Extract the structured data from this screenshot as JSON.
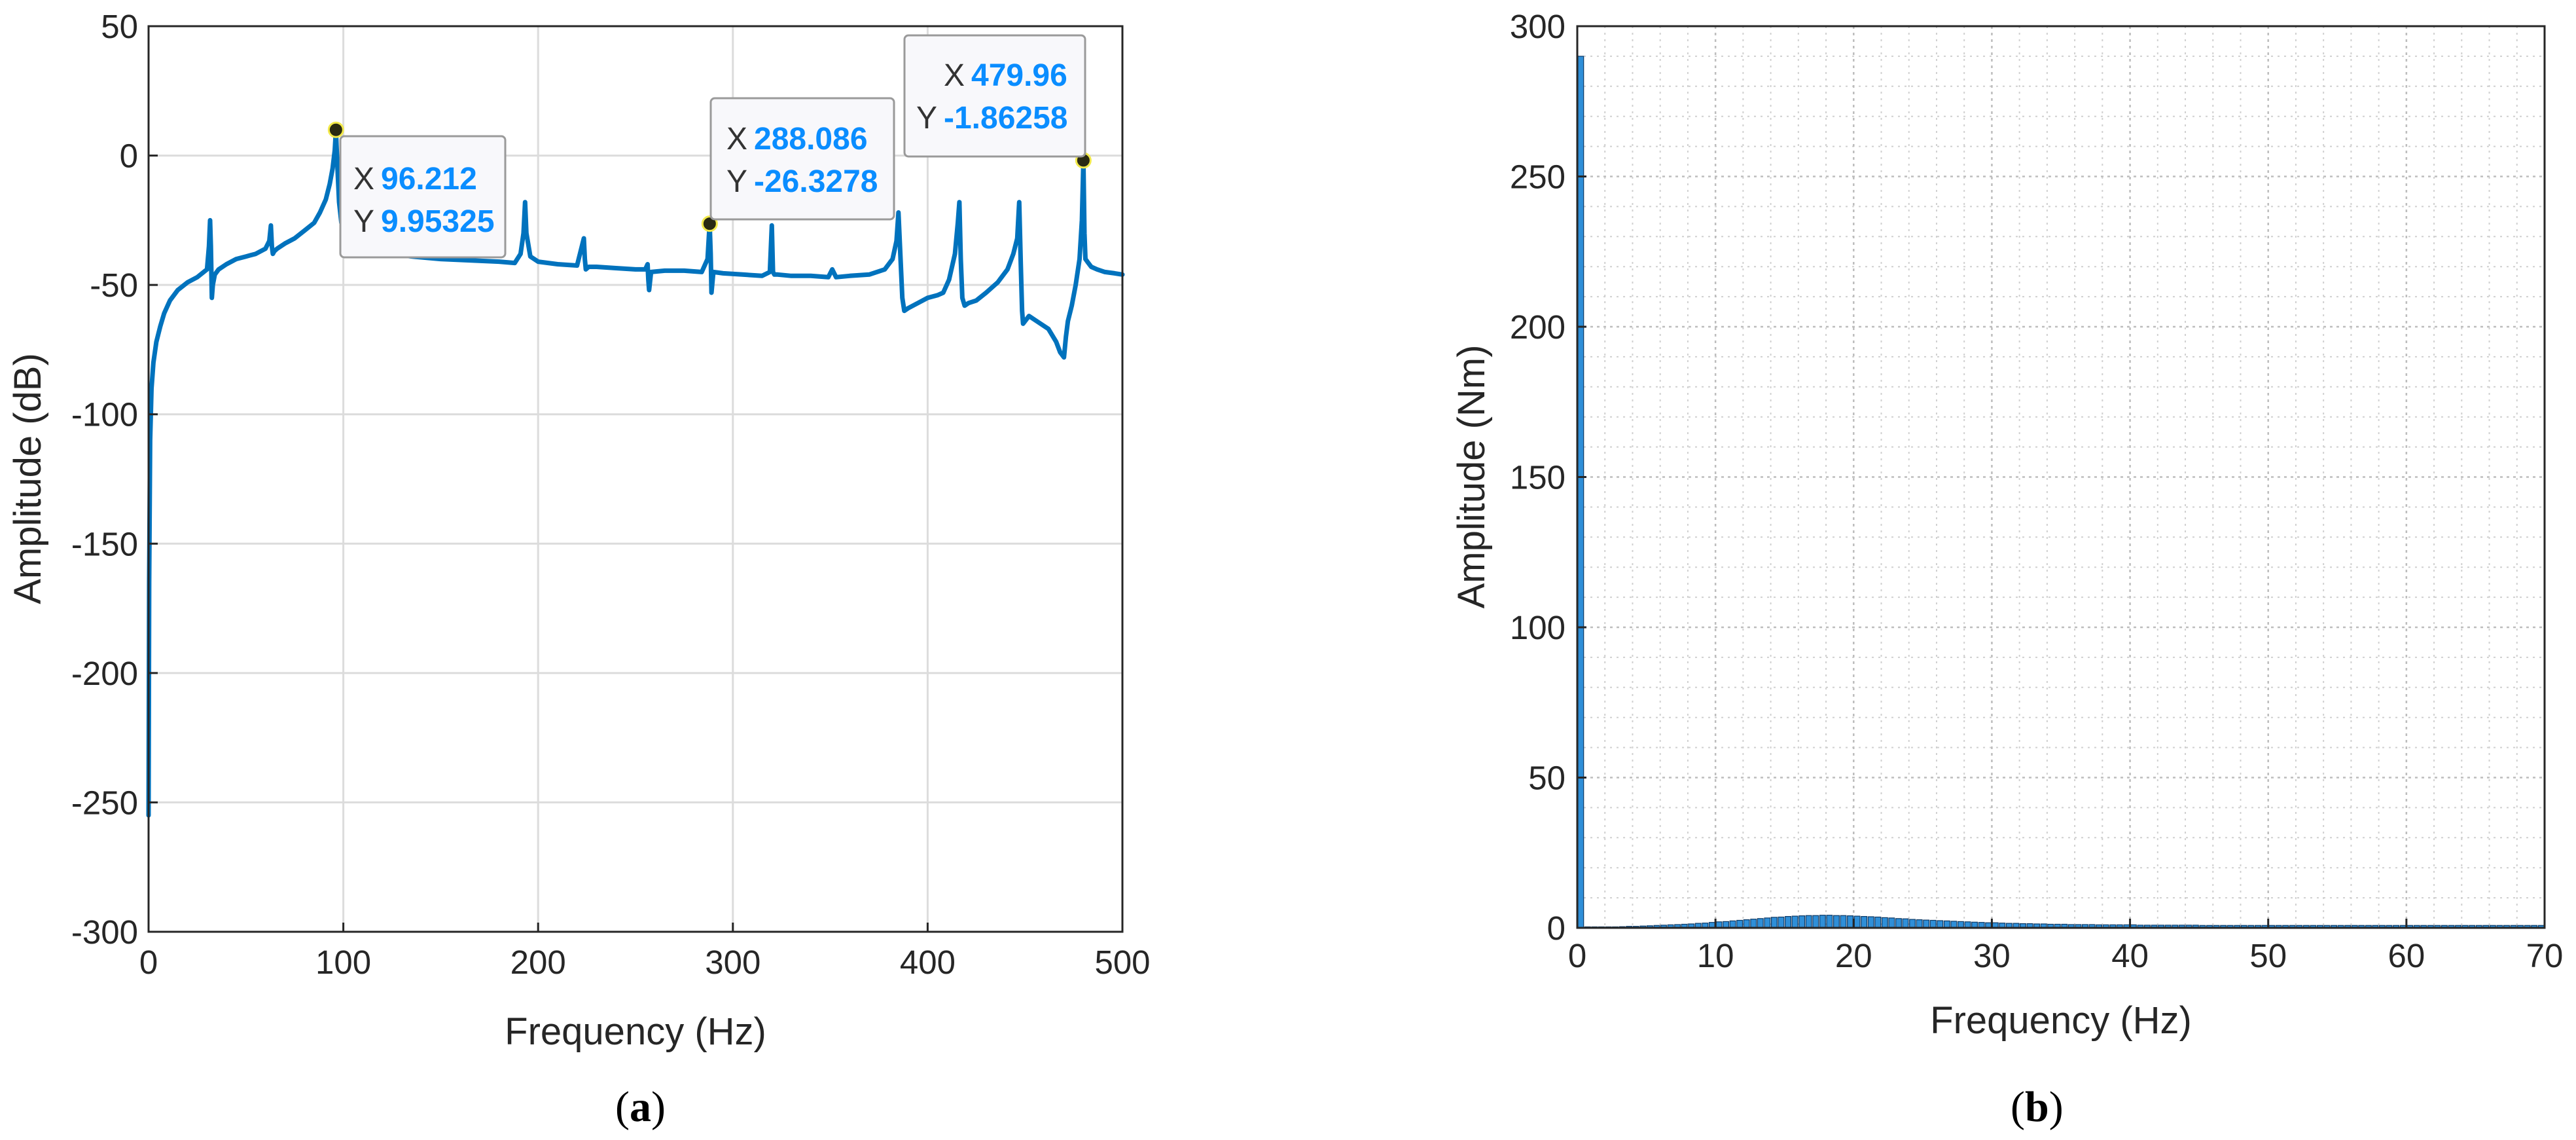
{
  "chart_data": [
    {
      "type": "line",
      "caption_letter": "a",
      "xlabel": "Frequency (Hz)",
      "ylabel": "Amplitude (dB)",
      "xlim": [
        0,
        500
      ],
      "ylim": [
        -300,
        50
      ],
      "xticks": [
        "0",
        "100",
        "200",
        "300",
        "400",
        "500"
      ],
      "yticks": [
        "50",
        "0",
        "-50",
        "-100",
        "-150",
        "-200",
        "-250",
        "-300"
      ],
      "grid": true,
      "line_color": "#0072BD",
      "series": [
        {
          "x": [
            0,
            0.3,
            0.8,
            1.5,
            2.5,
            4,
            6,
            8,
            11,
            15,
            20,
            25,
            30,
            31,
            31.6,
            32,
            32.5,
            33,
            34,
            36,
            40,
            45,
            50,
            55,
            60,
            62,
            62.8,
            63.3,
            63.8,
            64.5,
            66,
            70,
            75,
            80,
            85,
            88,
            91,
            93,
            94.5,
            95.6,
            96.212,
            96.5,
            97,
            97.8,
            99,
            101,
            104,
            108,
            115,
            125,
            135,
            150,
            165,
            180,
            188,
            191,
            192.5,
            193.3,
            194,
            196,
            200,
            210,
            220,
            223.5,
            224,
            224.5,
            226,
            230,
            240,
            250,
            255,
            256.2,
            256.6,
            257,
            258,
            265,
            275,
            284,
            287,
            288.086,
            288.6,
            289,
            290,
            295,
            305,
            315,
            319,
            320,
            320.6,
            321.3,
            323,
            330,
            340,
            349,
            351,
            353,
            360,
            370,
            378,
            382,
            384,
            385,
            385.8,
            386.4,
            387,
            388,
            390,
            395,
            400,
            405,
            408,
            411,
            414,
            415.5,
            416.3,
            417,
            417.8,
            419,
            421,
            425,
            430,
            436,
            441,
            444,
            446,
            447,
            447.8,
            448.5,
            449,
            450,
            452,
            456,
            462,
            466,
            468,
            470,
            471,
            472,
            474,
            476,
            478,
            479.2,
            479.96,
            480.5,
            481,
            482,
            484,
            487,
            491,
            496,
            500
          ],
          "y": [
            -255,
            -165,
            -110,
            -90,
            -80,
            -72,
            -66,
            -61,
            -56,
            -52,
            -49,
            -47,
            -44,
            -35,
            -25,
            -35,
            -55,
            -50,
            -46,
            -44,
            -42,
            -40,
            -39,
            -38,
            -36,
            -33,
            -27,
            -35,
            -38,
            -37,
            -36,
            -34,
            -32,
            -29,
            -26,
            -22,
            -17,
            -11,
            -5,
            2,
            9.95,
            4,
            -5,
            -18,
            -26,
            -30,
            -33,
            -35,
            -37,
            -38,
            -39,
            -40,
            -40.5,
            -41,
            -41.5,
            -38,
            -30,
            -18,
            -30,
            -39,
            -41,
            -42,
            -42.5,
            -32,
            -40,
            -44,
            -43,
            -43,
            -43.5,
            -44,
            -44,
            -42,
            -48,
            -52,
            -45,
            -44.5,
            -44.5,
            -45,
            -40,
            -26.3,
            -38,
            -53,
            -45,
            -45.5,
            -46,
            -46.5,
            -45,
            -27,
            -45,
            -46,
            -46,
            -46.5,
            -46.5,
            -47,
            -44,
            -47,
            -46.5,
            -46,
            -44,
            -40,
            -33,
            -22,
            -35,
            -45,
            -55,
            -60,
            -59,
            -57,
            -55,
            -54,
            -53,
            -48,
            -38,
            -26,
            -18,
            -40,
            -55,
            -58,
            -57,
            -56,
            -53,
            -49,
            -44,
            -38,
            -32,
            -18,
            -42,
            -60,
            -65,
            -64,
            -62,
            -64,
            -67,
            -72,
            -76,
            -78,
            -70,
            -64,
            -58,
            -50,
            -40,
            -25,
            -1.86,
            -30,
            -40,
            -41,
            -43,
            -44,
            -45,
            -45.5,
            -46
          ],
          "markers": [
            {
              "x": 96.212,
              "y": 9.95325
            },
            {
              "x": 288.086,
              "y": -26.3278
            },
            {
              "x": 479.96,
              "y": -1.86258
            }
          ]
        }
      ],
      "datatips": [
        {
          "x_label": "X",
          "x_value": "96.212",
          "y_label": "Y",
          "y_value": "9.95325"
        },
        {
          "x_label": "X",
          "x_value": "288.086",
          "y_label": "Y",
          "y_value": "-26.3278"
        },
        {
          "x_label": "X",
          "x_value": "479.96",
          "y_label": "Y",
          "y_value": "-1.86258"
        }
      ]
    },
    {
      "type": "bar",
      "caption_letter": "b",
      "xlabel": "Frequency (Hz)",
      "ylabel": "Amplitude (Nm)",
      "xlim": [
        0,
        70
      ],
      "ylim": [
        0,
        300
      ],
      "xticks": [
        "0",
        "10",
        "20",
        "30",
        "40",
        "50",
        "60",
        "70"
      ],
      "yticks": [
        "300",
        "250",
        "200",
        "150",
        "100",
        "50",
        "0"
      ],
      "grid": true,
      "minor_grid": true,
      "bar_color": "#2f8fd8",
      "series": [
        {
          "x": [
            0.25,
            0.75,
            1.25,
            1.75,
            2.25,
            2.75,
            3.25,
            3.75,
            4.25,
            4.75,
            5.25,
            5.75,
            6.25,
            6.75,
            7.25,
            7.75,
            8.25,
            8.75,
            9.25,
            9.75,
            10.25,
            10.75,
            11.25,
            11.75,
            12.25,
            12.75,
            13.25,
            13.75,
            14.25,
            14.75,
            15.25,
            15.75,
            16.25,
            16.75,
            17.25,
            17.75,
            18.25,
            18.75,
            19.25,
            19.75,
            20.25,
            20.75,
            21.25,
            21.75,
            22.25,
            22.75,
            23.25,
            23.75,
            24.25,
            24.75,
            25.25,
            25.75,
            26.25,
            26.75,
            27.25,
            27.75,
            28.25,
            28.75,
            29.25,
            29.75,
            30.25,
            30.75,
            31.25,
            31.75,
            32.25,
            32.75,
            33.25,
            33.75,
            34.25,
            34.75,
            35.25,
            35.75,
            36.25,
            36.75,
            37.25,
            37.75,
            38.25,
            38.75,
            39.25,
            39.75,
            40.25,
            40.75,
            41.25,
            41.75,
            42.25,
            42.75,
            43.25,
            43.75,
            44.25,
            44.75,
            45.25,
            45.75,
            46.25,
            46.75,
            47.25,
            47.75,
            48.25,
            48.75,
            49.25,
            49.75,
            50.25,
            50.75,
            51.25,
            51.75,
            52.25,
            52.75,
            53.25,
            53.75,
            54.25,
            54.75,
            55.25,
            55.75,
            56.25,
            56.75,
            57.25,
            57.75,
            58.25,
            58.75,
            59.25,
            59.75,
            60.25,
            60.75,
            61.25,
            61.75,
            62.25,
            62.75,
            63.25,
            63.75,
            64.25,
            64.75,
            65.25,
            65.75,
            66.25,
            66.75,
            67.25,
            67.75,
            68.25,
            68.75,
            69.25,
            69.75
          ],
          "values": [
            290,
            0.3,
            0.2,
            0.2,
            0.3,
            0.3,
            0.4,
            0.5,
            0.5,
            0.6,
            0.7,
            0.8,
            0.9,
            1,
            1.1,
            1.2,
            1.3,
            1.5,
            1.6,
            1.8,
            2,
            2.1,
            2.3,
            2.5,
            2.7,
            2.9,
            3.1,
            3.3,
            3.5,
            3.6,
            3.8,
            3.9,
            4,
            4.1,
            4.1,
            4.2,
            4.2,
            4.1,
            4.1,
            4,
            3.9,
            3.8,
            3.7,
            3.6,
            3.4,
            3.3,
            3.1,
            3,
            2.8,
            2.7,
            2.6,
            2.5,
            2.4,
            2.3,
            2.2,
            2.1,
            2,
            1.9,
            1.8,
            1.7,
            1.7,
            1.6,
            1.5,
            1.5,
            1.4,
            1.4,
            1.3,
            1.3,
            1.2,
            1.2,
            1.2,
            1.1,
            1.1,
            1.1,
            1.1,
            1,
            1,
            1,
            1,
            1,
            1,
            0.9,
            0.9,
            0.9,
            0.9,
            0.9,
            0.9,
            0.9,
            0.9,
            0.9,
            0.8,
            0.8,
            0.8,
            0.8,
            0.8,
            0.8,
            0.8,
            0.8,
            0.8,
            0.8,
            0.8,
            0.8,
            0.8,
            0.8,
            0.8,
            0.8,
            0.8,
            0.8,
            0.8,
            0.8,
            0.8,
            0.8,
            0.8,
            0.8,
            0.8,
            0.8,
            0.8,
            0.8,
            0.8,
            0.8,
            0.8,
            0.8,
            0.8,
            0.8,
            0.8,
            0.8,
            0.8,
            0.8,
            0.8,
            0.8,
            0.8,
            0.8,
            0.8,
            0.8,
            0.8,
            0.8,
            0.8,
            0.8,
            0.8,
            0.8
          ]
        }
      ]
    }
  ]
}
